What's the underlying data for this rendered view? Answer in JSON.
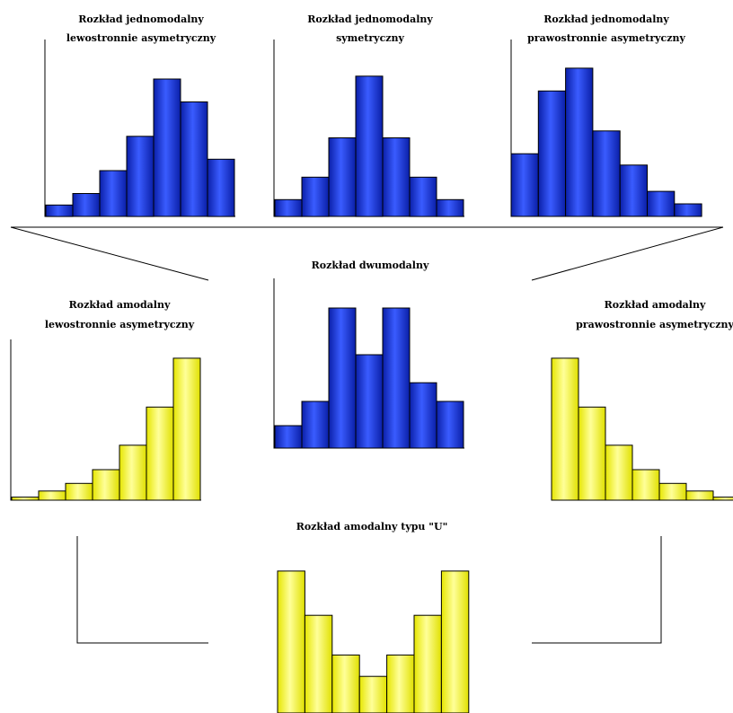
{
  "colors": {
    "blue_bar": "#1133e6",
    "yellow_bar": "#ffff44",
    "bar_outline": "#000000",
    "axis": "#000000"
  },
  "chart_data": [
    {
      "type": "bar",
      "title": "Rozkład jednomodalny lewostronnie asymetryczny",
      "title_lines": [
        "Rozkład jednomodalny",
        "lewostronnie asymetryczny"
      ],
      "color": "blue",
      "values": [
        1,
        2,
        4,
        7,
        12,
        10,
        5
      ]
    },
    {
      "type": "bar",
      "title": "Rozkład jednomodalny symetryczny",
      "title_lines": [
        "Rozkład jednomodalny",
        "symetryczny"
      ],
      "color": "blue",
      "values": [
        1.5,
        3.5,
        7,
        12.5,
        7,
        3.5,
        1.5
      ]
    },
    {
      "type": "bar",
      "title": "Rozkład jednomodalny prawostronnie asymetryczny",
      "title_lines": [
        "Rozkład jednomodalny",
        "prawostronnie asymetryczny"
      ],
      "color": "blue",
      "values": [
        5.5,
        11,
        13,
        7.5,
        4.5,
        2.2,
        1.1
      ]
    },
    {
      "type": "bar",
      "title": "Rozkład dwumodalny",
      "title_lines": [
        "Rozkład dwumodalny"
      ],
      "color": "blue",
      "values": [
        1.2,
        2.5,
        7.5,
        5,
        7.5,
        3.5,
        2.5
      ]
    },
    {
      "type": "bar",
      "title": "Rozkład amodalny lewostronnie asymetryczny",
      "title_lines": [
        "Rozkład amodalny",
        "lewostronnie asymetryczny"
      ],
      "color": "yellow",
      "values": [
        0.2,
        0.6,
        1.1,
        2,
        3.6,
        6.1,
        9.3
      ]
    },
    {
      "type": "bar",
      "title": "Rozkład amodalny prawostronnie asymetryczny",
      "title_lines": [
        "Rozkład amodalny",
        "prawostronnie asymetryczny"
      ],
      "color": "yellow",
      "values": [
        9.3,
        6.1,
        3.6,
        2,
        1.1,
        0.6,
        0.2
      ]
    },
    {
      "type": "bar",
      "title": "Rozkład amodalny typu \"U\"",
      "title_lines": [
        "Rozkład amodalny typu \"U\""
      ],
      "color": "yellow",
      "values": [
        9.3,
        6.4,
        3.8,
        2.4,
        3.8,
        6.4,
        9.3
      ]
    }
  ]
}
